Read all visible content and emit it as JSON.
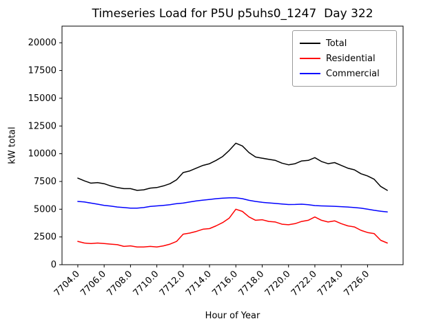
{
  "chart_data": {
    "type": "line",
    "title": "Timeseries Load for P5U p5uhs0_1247  Day 322",
    "xlabel": "Hour of Year",
    "ylabel": "kW total",
    "xlim": [
      7702.8,
      7728.7
    ],
    "ylim": [
      0,
      21500
    ],
    "grid": false,
    "legend_position": "upper right",
    "xticks": {
      "values": [
        7704,
        7706,
        7708,
        7710,
        7712,
        7714,
        7716,
        7718,
        7720,
        7722,
        7724,
        7726
      ],
      "labels": [
        "7704.0",
        "7706.0",
        "7708.0",
        "7710.0",
        "7712.0",
        "7714.0",
        "7716.0",
        "7718.0",
        "7720.0",
        "7722.0",
        "7724.0",
        "7726.0"
      ]
    },
    "yticks": {
      "values": [
        0,
        2500,
        5000,
        7500,
        10000,
        12500,
        15000,
        17500,
        20000
      ],
      "labels": [
        "0",
        "2500",
        "5000",
        "7500",
        "10000",
        "12500",
        "15000",
        "17500",
        "20000"
      ]
    },
    "x": [
      7704,
      7704.5,
      7705,
      7705.5,
      7706,
      7706.5,
      7707,
      7707.5,
      7708,
      7708.5,
      7709,
      7709.5,
      7710,
      7710.5,
      7711,
      7711.5,
      7712,
      7712.5,
      7713,
      7713.5,
      7714,
      7714.5,
      7715,
      7715.5,
      7716,
      7716.5,
      7717,
      7717.5,
      7718,
      7718.5,
      7719,
      7719.5,
      7720,
      7720.5,
      7721,
      7721.5,
      7722,
      7722.5,
      7723,
      7723.5,
      7724,
      7724.5,
      7725,
      7725.5,
      7726,
      7726.5,
      7727,
      7727.5
    ],
    "series": [
      {
        "name": "Total",
        "color": "#000000",
        "values": [
          7800,
          7550,
          7350,
          7400,
          7300,
          7100,
          6950,
          6850,
          6850,
          6700,
          6750,
          6900,
          6950,
          7100,
          7300,
          7650,
          8300,
          8450,
          8700,
          8950,
          9100,
          9400,
          9750,
          10300,
          10950,
          10700,
          10100,
          9700,
          9600,
          9500,
          9400,
          9150,
          9000,
          9100,
          9350,
          9400,
          9650,
          9300,
          9100,
          9200,
          8950,
          8700,
          8550,
          8200,
          8000,
          7700,
          7050,
          6700
        ]
      },
      {
        "name": "Residential",
        "color": "#ff0000",
        "values": [
          2100,
          1950,
          1900,
          1950,
          1900,
          1850,
          1800,
          1650,
          1700,
          1600,
          1600,
          1650,
          1600,
          1700,
          1850,
          2100,
          2750,
          2850,
          3000,
          3200,
          3250,
          3500,
          3800,
          4200,
          5000,
          4800,
          4300,
          4000,
          4050,
          3900,
          3850,
          3650,
          3600,
          3700,
          3900,
          4000,
          4300,
          4000,
          3850,
          3950,
          3700,
          3500,
          3400,
          3100,
          2900,
          2800,
          2200,
          1950
        ]
      },
      {
        "name": "Commercial",
        "color": "#0000ff",
        "values": [
          5700,
          5650,
          5550,
          5450,
          5350,
          5280,
          5200,
          5150,
          5100,
          5100,
          5150,
          5250,
          5300,
          5350,
          5400,
          5500,
          5550,
          5650,
          5750,
          5820,
          5880,
          5950,
          6000,
          6020,
          6030,
          5950,
          5800,
          5700,
          5620,
          5570,
          5520,
          5470,
          5420,
          5430,
          5450,
          5400,
          5330,
          5300,
          5280,
          5260,
          5230,
          5200,
          5150,
          5100,
          5000,
          4900,
          4820,
          4750
        ]
      }
    ]
  }
}
